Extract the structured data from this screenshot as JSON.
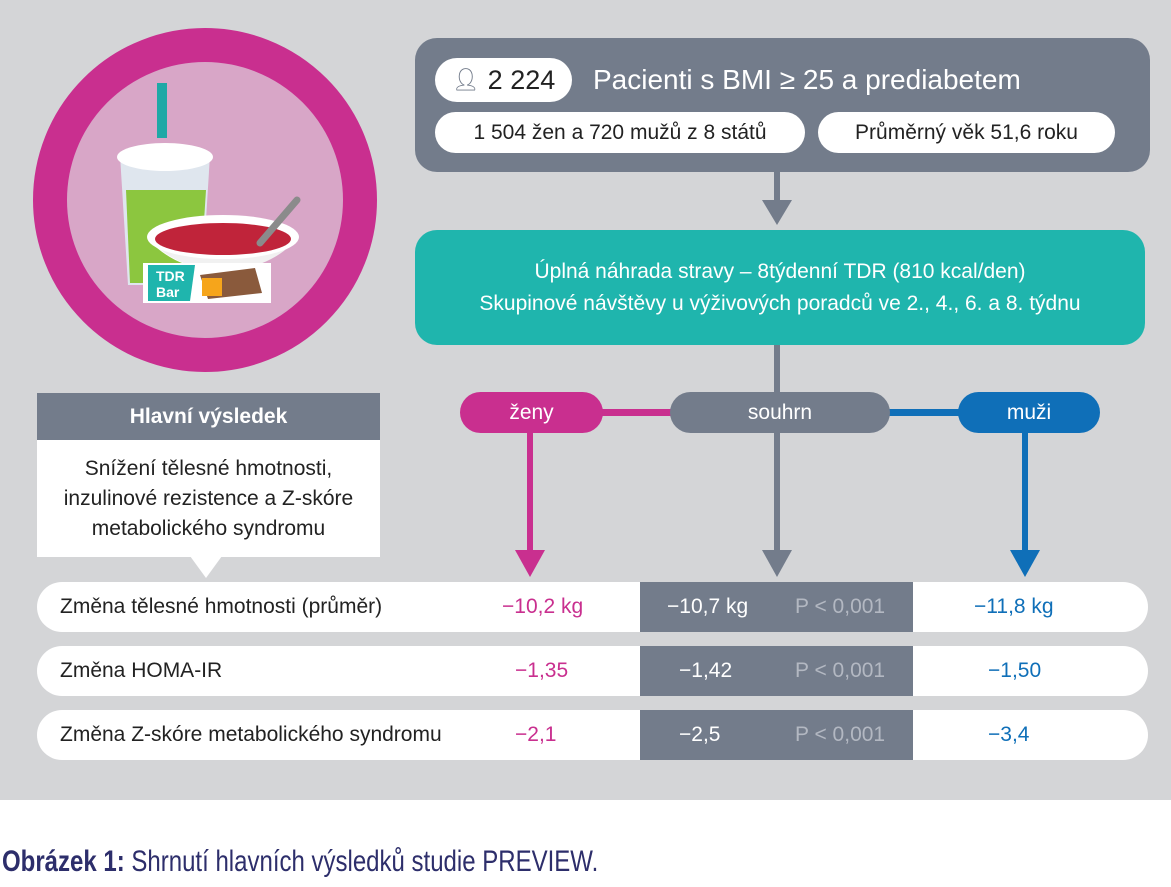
{
  "header": {
    "count": "2 224",
    "title": "Pacienti s BMI ≥ 25 a prediabetem",
    "detail1": "1 504 žen a 720 mužů z 8 států",
    "detail2": "Průměrný věk 51,6 roku"
  },
  "intervention": {
    "line1": "Úplná náhrada stravy – 8týdenní TDR (810 kcal/den)",
    "line2": "Skupinové návštěvy u výživových poradců ve 2., 4., 6. a 8. týdnu"
  },
  "illustration": {
    "bar_label": "TDR Bar"
  },
  "groups": {
    "women": "ženy",
    "summary": "souhrn",
    "men": "muži"
  },
  "main_result": {
    "title": "Hlavní výsledek",
    "text": "Snížení tělesné hmotnosti, inzulinové rezistence a Z-skóre metabolického syndromu"
  },
  "rows": [
    {
      "label": "Změna tělesné hmotnosti (průměr)",
      "women": "−10,2 kg",
      "summary": "−10,7 kg",
      "p": "P < 0,001",
      "men": "−11,8 kg"
    },
    {
      "label": "Změna HOMA-IR",
      "women": "−1,35",
      "summary": "−1,42",
      "p": "P < 0,001",
      "men": "−1,50"
    },
    {
      "label": "Změna Z-skóre metabolického syndromu",
      "women": "−2,1",
      "summary": "−2,5",
      "p": "P < 0,001",
      "men": "−3,4"
    }
  ],
  "caption": {
    "prefix": "Obrázek 1:",
    "text": " Shrnutí hlavních výsledků studie PREVIEW."
  },
  "colors": {
    "women": "#c92f8f",
    "men": "#0f6fb8",
    "summary": "#737c8b",
    "teal": "#1fb5ad"
  }
}
